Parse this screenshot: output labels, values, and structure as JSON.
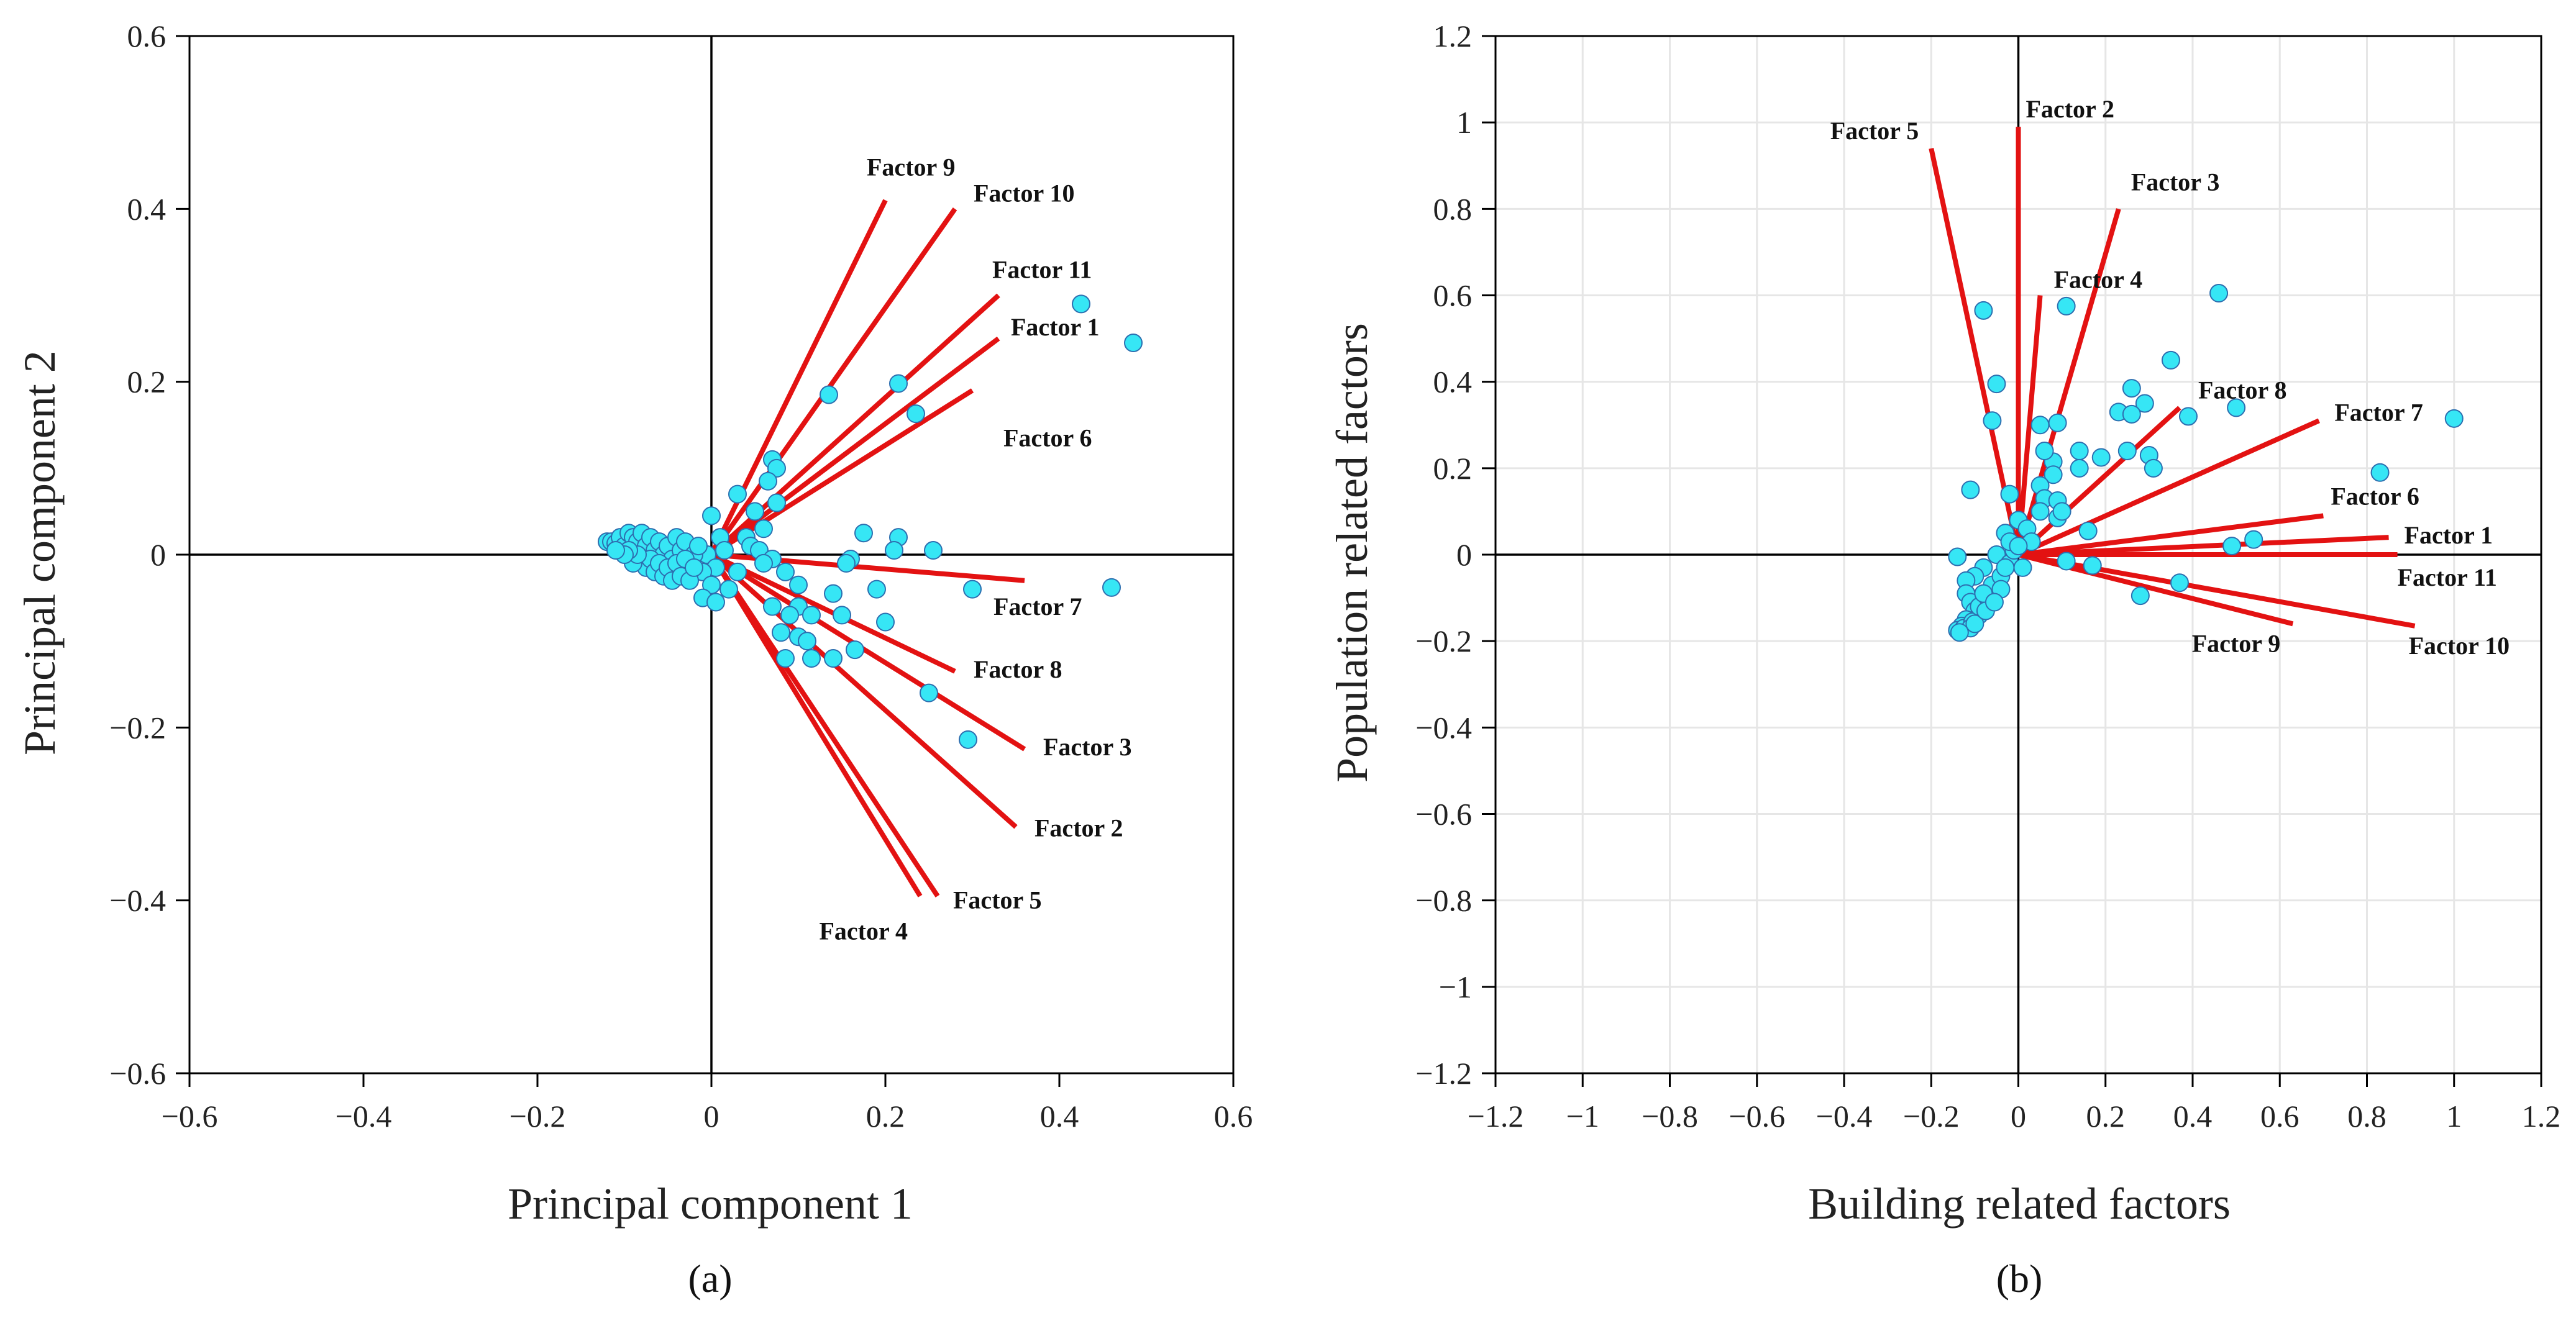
{
  "colors": {
    "vector": "#e31212",
    "point_fill": "#36e6f5",
    "point_stroke": "#2d6fb0",
    "grid": "#e6e6e6",
    "axis": "#000000"
  },
  "chart_data": [
    {
      "type": "scatter",
      "subtype": "biplot",
      "panel_label": "(a)",
      "xlabel": "Principal component 1",
      "ylabel": "Principal component 2",
      "xlim": [
        -0.6,
        0.6
      ],
      "ylim": [
        -0.6,
        0.6
      ],
      "xticks": [
        -0.6,
        -0.4,
        -0.2,
        0,
        0.2,
        0.4,
        0.6
      ],
      "yticks": [
        -0.6,
        -0.4,
        -0.2,
        0,
        0.2,
        0.4,
        0.6
      ],
      "xtick_labels": [
        "−0.6",
        "−0.4",
        "−0.2",
        "0",
        "0.2",
        "0.4",
        "0.6"
      ],
      "ytick_labels": [
        "−0.6",
        "−0.4",
        "−0.2",
        "0",
        "0.2",
        "0.4",
        "0.6"
      ],
      "grid": false,
      "vectors": [
        {
          "name": "Factor 9",
          "x": 0.2,
          "y": 0.41
        },
        {
          "name": "Factor 10",
          "x": 0.28,
          "y": 0.4
        },
        {
          "name": "Factor 11",
          "x": 0.33,
          "y": 0.3
        },
        {
          "name": "Factor 1",
          "x": 0.33,
          "y": 0.25
        },
        {
          "name": "Factor 6",
          "x": 0.3,
          "y": 0.19
        },
        {
          "name": "Factor 7",
          "x": 0.36,
          "y": -0.03
        },
        {
          "name": "Factor 8",
          "x": 0.28,
          "y": -0.135
        },
        {
          "name": "Factor 3",
          "x": 0.36,
          "y": -0.225
        },
        {
          "name": "Factor 2",
          "x": 0.35,
          "y": -0.315
        },
        {
          "name": "Factor 5",
          "x": 0.26,
          "y": -0.395
        },
        {
          "name": "Factor 4",
          "x": 0.24,
          "y": -0.395
        }
      ],
      "points": [
        [
          0.425,
          0.29
        ],
        [
          0.485,
          0.245
        ],
        [
          0.215,
          0.198
        ],
        [
          0.235,
          0.163
        ],
        [
          0.135,
          0.185
        ],
        [
          0.07,
          0.11
        ],
        [
          0.075,
          0.1
        ],
        [
          0.065,
          0.085
        ],
        [
          0.075,
          0.06
        ],
        [
          0.03,
          0.07
        ],
        [
          0.05,
          0.05
        ],
        [
          0.06,
          0.03
        ],
        [
          0.04,
          0.02
        ],
        [
          0.045,
          0.01
        ],
        [
          0.055,
          0.005
        ],
        [
          0.175,
          0.025
        ],
        [
          0.215,
          0.02
        ],
        [
          0.21,
          0.005
        ],
        [
          0.255,
          0.005
        ],
        [
          0.16,
          -0.005
        ],
        [
          0.155,
          -0.01
        ],
        [
          0.07,
          -0.005
        ],
        [
          0.06,
          -0.01
        ],
        [
          0.085,
          -0.02
        ],
        [
          0.1,
          -0.035
        ],
        [
          0.1,
          -0.06
        ],
        [
          0.14,
          -0.045
        ],
        [
          0.19,
          -0.04
        ],
        [
          0.3,
          -0.04
        ],
        [
          0.46,
          -0.038
        ],
        [
          0.07,
          -0.06
        ],
        [
          0.09,
          -0.07
        ],
        [
          0.115,
          -0.07
        ],
        [
          0.15,
          -0.07
        ],
        [
          0.2,
          -0.078
        ],
        [
          0.08,
          -0.09
        ],
        [
          0.1,
          -0.095
        ],
        [
          0.11,
          -0.1
        ],
        [
          0.165,
          -0.11
        ],
        [
          0.14,
          -0.12
        ],
        [
          0.115,
          -0.12
        ],
        [
          0.085,
          -0.12
        ],
        [
          0.25,
          -0.16
        ],
        [
          0.295,
          -0.214
        ],
        [
          0.0,
          0.045
        ],
        [
          0.01,
          0.02
        ],
        [
          -0.005,
          0.0
        ],
        [
          0.005,
          -0.015
        ],
        [
          -0.01,
          -0.02
        ],
        [
          0.0,
          -0.035
        ],
        [
          0.02,
          -0.04
        ],
        [
          0.03,
          -0.02
        ],
        [
          0.015,
          0.005
        ],
        [
          -0.01,
          -0.05
        ],
        [
          0.005,
          -0.055
        ],
        [
          -0.12,
          0.015
        ],
        [
          -0.115,
          0.015
        ],
        [
          -0.11,
          0.013
        ],
        [
          -0.105,
          0.02
        ],
        [
          -0.1,
          0.01
        ],
        [
          -0.095,
          0.025
        ],
        [
          -0.09,
          0.02
        ],
        [
          -0.085,
          0.015
        ],
        [
          -0.08,
          0.025
        ],
        [
          -0.075,
          0.01
        ],
        [
          -0.07,
          0.02
        ],
        [
          -0.065,
          0.005
        ],
        [
          -0.06,
          0.015
        ],
        [
          -0.055,
          0.0
        ],
        [
          -0.05,
          0.01
        ],
        [
          -0.045,
          -0.005
        ],
        [
          -0.04,
          0.02
        ],
        [
          -0.035,
          0.005
        ],
        [
          -0.03,
          0.015
        ],
        [
          -0.025,
          -0.01
        ],
        [
          -0.02,
          0.0
        ],
        [
          -0.015,
          0.01
        ],
        [
          -0.08,
          -0.005
        ],
        [
          -0.075,
          -0.015
        ],
        [
          -0.07,
          -0.005
        ],
        [
          -0.065,
          -0.02
        ],
        [
          -0.06,
          -0.01
        ],
        [
          -0.055,
          -0.025
        ],
        [
          -0.05,
          -0.015
        ],
        [
          -0.045,
          -0.03
        ],
        [
          -0.04,
          -0.01
        ],
        [
          -0.035,
          -0.025
        ],
        [
          -0.03,
          -0.005
        ],
        [
          -0.025,
          -0.03
        ],
        [
          -0.02,
          -0.015
        ],
        [
          -0.09,
          -0.01
        ],
        [
          -0.085,
          0.0
        ],
        [
          -0.095,
          0.005
        ],
        [
          -0.1,
          0.0
        ],
        [
          -0.11,
          0.005
        ]
      ]
    },
    {
      "type": "scatter",
      "subtype": "biplot",
      "panel_label": "(b)",
      "xlabel": "Building related factors",
      "ylabel": "Population related factors",
      "xlim": [
        -1.2,
        1.2
      ],
      "ylim": [
        -1.2,
        1.2
      ],
      "xticks": [
        -1.2,
        -1,
        -0.8,
        -0.6,
        -0.4,
        -0.2,
        0,
        0.2,
        0.4,
        0.6,
        0.8,
        1,
        1.2
      ],
      "yticks": [
        -1.2,
        -1,
        -0.8,
        -0.6,
        -0.4,
        -0.2,
        0,
        0.2,
        0.4,
        0.6,
        0.8,
        1,
        1.2
      ],
      "xtick_labels": [
        "−1.2",
        "−1",
        "−0.8",
        "−0.6",
        "−0.4",
        "−0.2",
        "0",
        "0.2",
        "0.4",
        "0.6",
        "0.8",
        "1",
        "1.2"
      ],
      "ytick_labels": [
        "−1.2",
        "−1",
        "−0.8",
        "−0.6",
        "−0.4",
        "−0.2",
        "0",
        "0.2",
        "0.4",
        "0.6",
        "0.8",
        "1",
        "1.2"
      ],
      "grid": true,
      "vectors": [
        {
          "name": "Factor 2",
          "x": 0.0,
          "y": 0.99
        },
        {
          "name": "Factor 5",
          "x": -0.2,
          "y": 0.94
        },
        {
          "name": "Factor 3",
          "x": 0.23,
          "y": 0.8
        },
        {
          "name": "Factor 4",
          "x": 0.05,
          "y": 0.6
        },
        {
          "name": "Factor 8",
          "x": 0.37,
          "y": 0.34
        },
        {
          "name": "Factor 7",
          "x": 0.69,
          "y": 0.31
        },
        {
          "name": "Factor 6",
          "x": 0.7,
          "y": 0.09
        },
        {
          "name": "Factor 1",
          "x": 0.85,
          "y": 0.04
        },
        {
          "name": "Factor 11",
          "x": 0.87,
          "y": 0.0
        },
        {
          "name": "Factor 9",
          "x": 0.63,
          "y": -0.16
        },
        {
          "name": "Factor 10",
          "x": 0.91,
          "y": -0.165
        }
      ],
      "points": [
        [
          0.46,
          0.605
        ],
        [
          -0.08,
          0.565
        ],
        [
          0.11,
          0.575
        ],
        [
          0.35,
          0.45
        ],
        [
          -0.05,
          0.395
        ],
        [
          0.26,
          0.385
        ],
        [
          0.5,
          0.34
        ],
        [
          0.29,
          0.35
        ],
        [
          0.23,
          0.33
        ],
        [
          0.26,
          0.325
        ],
        [
          0.39,
          0.32
        ],
        [
          1.0,
          0.315
        ],
        [
          0.83,
          0.19
        ],
        [
          0.05,
          0.3
        ],
        [
          0.09,
          0.305
        ],
        [
          -0.06,
          0.31
        ],
        [
          0.14,
          0.24
        ],
        [
          0.25,
          0.24
        ],
        [
          0.19,
          0.225
        ],
        [
          0.3,
          0.23
        ],
        [
          0.31,
          0.2
        ],
        [
          0.08,
          0.215
        ],
        [
          0.06,
          0.24
        ],
        [
          0.08,
          0.185
        ],
        [
          0.14,
          0.2
        ],
        [
          -0.11,
          0.15
        ],
        [
          -0.02,
          0.14
        ],
        [
          0.05,
          0.16
        ],
        [
          0.06,
          0.13
        ],
        [
          0.09,
          0.125
        ],
        [
          0.05,
          0.1
        ],
        [
          0.09,
          0.085
        ],
        [
          0.1,
          0.1
        ],
        [
          0.16,
          0.055
        ],
        [
          0.49,
          0.02
        ],
        [
          0.54,
          0.035
        ],
        [
          0.37,
          -0.065
        ],
        [
          0.28,
          -0.095
        ],
        [
          0.17,
          -0.025
        ],
        [
          0.11,
          -0.015
        ],
        [
          0.0,
          0.08
        ],
        [
          0.02,
          0.06
        ],
        [
          -0.03,
          0.05
        ],
        [
          0.03,
          0.03
        ],
        [
          -0.05,
          0.0
        ],
        [
          -0.02,
          -0.02
        ],
        [
          -0.08,
          -0.03
        ],
        [
          -0.1,
          -0.05
        ],
        [
          -0.12,
          -0.06
        ],
        [
          -0.14,
          -0.005
        ],
        [
          -0.12,
          -0.09
        ],
        [
          -0.11,
          -0.11
        ],
        [
          -0.1,
          -0.13
        ],
        [
          -0.09,
          -0.14
        ],
        [
          -0.12,
          -0.15
        ],
        [
          -0.13,
          -0.165
        ],
        [
          -0.14,
          -0.175
        ],
        [
          -0.125,
          -0.17
        ],
        [
          -0.105,
          -0.155
        ],
        [
          -0.09,
          -0.12
        ],
        [
          -0.07,
          -0.1
        ],
        [
          -0.06,
          -0.07
        ],
        [
          -0.04,
          -0.05
        ],
        [
          -0.03,
          -0.03
        ],
        [
          -0.01,
          0.01
        ],
        [
          0.01,
          -0.03
        ],
        [
          -0.02,
          0.03
        ],
        [
          0.0,
          0.02
        ],
        [
          -0.04,
          -0.08
        ],
        [
          -0.08,
          -0.09
        ],
        [
          -0.11,
          -0.17
        ],
        [
          -0.135,
          -0.18
        ],
        [
          -0.1,
          -0.16
        ],
        [
          -0.075,
          -0.13
        ],
        [
          -0.055,
          -0.11
        ]
      ]
    }
  ]
}
